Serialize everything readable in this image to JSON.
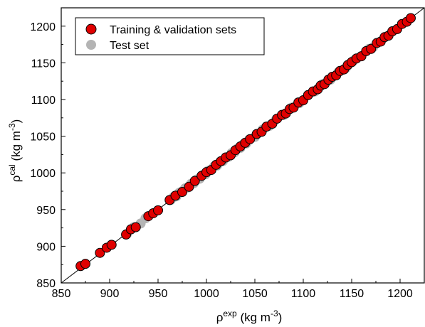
{
  "chart_data": {
    "type": "scatter",
    "xlabel": {
      "symbol": "ρ",
      "superscript": "exp",
      "units": "(kg m",
      "units_exp": "-3",
      "units_close": ")"
    },
    "ylabel": {
      "symbol": "ρ",
      "superscript": "cal",
      "units": "(kg m",
      "units_exp": "-3",
      "units_close": ")"
    },
    "xlim": [
      850,
      1225
    ],
    "ylim": [
      850,
      1225
    ],
    "xticks": [
      850,
      900,
      950,
      1000,
      1050,
      1100,
      1150,
      1200
    ],
    "yticks": [
      850,
      900,
      950,
      1000,
      1050,
      1100,
      1150,
      1200
    ],
    "tick_labels_x": [
      "850",
      "900",
      "950",
      "1000",
      "1050",
      "1100",
      "1150",
      "1200"
    ],
    "tick_labels_y": [
      "850",
      "900",
      "950",
      "1000",
      "1050",
      "1100",
      "1150",
      "1200"
    ],
    "grid": false,
    "legend_position": "top-left",
    "reference_line": "y = x",
    "series": [
      {
        "name": "Training & validation sets",
        "color": "#e00000",
        "edge_color": "#000000",
        "x": [
          870,
          875,
          890,
          897,
          902,
          917,
          922,
          927,
          940,
          945,
          950,
          962,
          968,
          975,
          982,
          988,
          995,
          1000,
          1005,
          1010,
          1015,
          1020,
          1025,
          1030,
          1035,
          1040,
          1045,
          1052,
          1057,
          1062,
          1068,
          1073,
          1078,
          1082,
          1086,
          1090,
          1095,
          1100,
          1105,
          1110,
          1115,
          1118,
          1122,
          1126,
          1130,
          1134,
          1138,
          1142,
          1146,
          1150,
          1155,
          1160,
          1165,
          1170,
          1176,
          1180,
          1184,
          1188,
          1192,
          1197,
          1202,
          1207,
          1211
        ],
        "y": [
          873,
          876,
          891,
          898,
          902,
          916,
          923,
          926,
          941,
          945,
          949,
          963,
          969,
          974,
          981,
          989,
          996,
          1001,
          1004,
          1011,
          1016,
          1021,
          1024,
          1031,
          1036,
          1041,
          1046,
          1053,
          1056,
          1063,
          1067,
          1074,
          1079,
          1081,
          1087,
          1089,
          1096,
          1099,
          1106,
          1111,
          1114,
          1119,
          1121,
          1127,
          1131,
          1133,
          1139,
          1141,
          1147,
          1151,
          1156,
          1159,
          1166,
          1169,
          1177,
          1179,
          1185,
          1187,
          1193,
          1196,
          1203,
          1206,
          1211
        ]
      },
      {
        "name": "Test set",
        "color": "#b4b4b4",
        "x": [
          918,
          925,
          932,
          937,
          963,
          966,
          969,
          972,
          975,
          978,
          981,
          984,
          987,
          990,
          993,
          996,
          999,
          1002,
          1005,
          1008,
          1011,
          1014,
          1017,
          1020,
          1023,
          1026,
          1029,
          1032,
          1035,
          1038,
          1041,
          1044,
          1050,
          1058,
          1065,
          1072,
          1080,
          1088,
          1096,
          1105,
          1112,
          1120,
          1128,
          1136,
          1144,
          1152,
          1160,
          1168,
          1172
        ],
        "y": [
          917,
          926,
          931,
          938,
          963,
          967,
          968,
          973,
          975,
          979,
          980,
          985,
          986,
          991,
          992,
          997,
          998,
          1003,
          1004,
          1009,
          1010,
          1015,
          1016,
          1021,
          1022,
          1027,
          1028,
          1033,
          1034,
          1039,
          1040,
          1045,
          1049,
          1059,
          1064,
          1073,
          1079,
          1089,
          1095,
          1106,
          1111,
          1121,
          1127,
          1137,
          1143,
          1153,
          1159,
          1169,
          1171
        ]
      }
    ]
  }
}
